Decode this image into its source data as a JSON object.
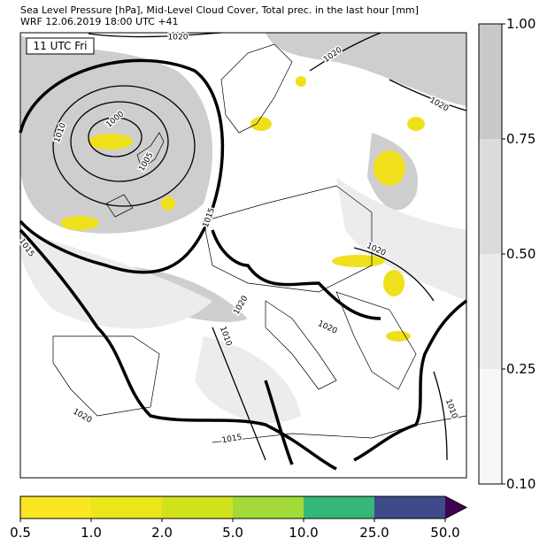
{
  "header": {
    "title": "Sea Level Pressure [hPa], Mid-Level Cloud Cover, Total prec. in the last hour [mm]",
    "subtitle": "WRF 12.06.2019 18:00 UTC +41"
  },
  "map": {
    "time_label": "11 UTC Fri",
    "isobar_labels": [
      "1020",
      "1020",
      "1020",
      "1010",
      "1000",
      "1005",
      "1015",
      "1015",
      "1020",
      "1020",
      "1020",
      "1010",
      "1010",
      "1020",
      "1015"
    ]
  },
  "cloud_colorbar": {
    "ticks": [
      "0.10",
      "0.25",
      "0.50",
      "0.75",
      "1.00"
    ],
    "colors": [
      "#f7f7f7",
      "#ebebeb",
      "#dcdcdc",
      "#c9c9c9"
    ]
  },
  "precip_colorbar": {
    "ticks": [
      "0.5",
      "1.0",
      "2.0",
      "5.0",
      "10.0",
      "25.0",
      "50.0"
    ],
    "colors": [
      "#fae622",
      "#ebe51a",
      "#d2e21b",
      "#a2da37",
      "#35b779",
      "#3e4a89",
      "#440154"
    ]
  }
}
